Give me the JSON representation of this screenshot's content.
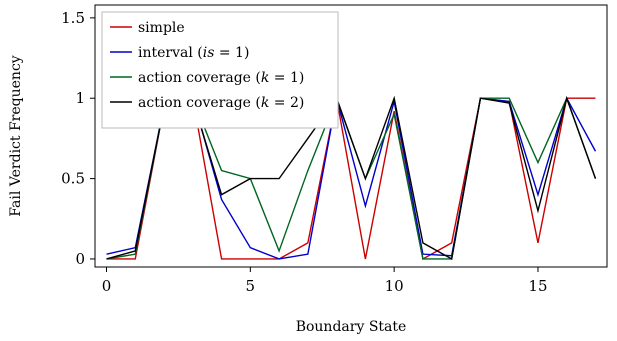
{
  "chart_data": {
    "type": "line",
    "xlabel": "Boundary State",
    "ylabel": "Fail Verdict Frequency",
    "xlim": [
      -0.4,
      17.4
    ],
    "ylim": [
      -0.05,
      1.58
    ],
    "xticks": [
      0,
      5,
      10,
      15
    ],
    "xtick_labels": [
      "0",
      "5",
      "10",
      "15"
    ],
    "yticks": [
      0,
      0.5,
      1,
      1.5
    ],
    "ytick_labels": [
      "0",
      "0.5",
      "1",
      "1.5"
    ],
    "grid": false,
    "legend_position": "top-left",
    "x": [
      0,
      1,
      2,
      3,
      4,
      5,
      6,
      7,
      8,
      9,
      10,
      11,
      12,
      13,
      14,
      15,
      16,
      17
    ],
    "series": [
      {
        "name_parts": [
          "simple"
        ],
        "color": "#cc0000",
        "values": [
          0,
          0,
          0.95,
          1.0,
          0,
          0,
          0,
          0.1,
          1.0,
          0,
          0.92,
          0,
          0.1,
          1.0,
          0.98,
          0.1,
          1.0,
          1.0
        ]
      },
      {
        "name_parts": [
          "interval (",
          "is",
          " = 1)"
        ],
        "color": "#0000cc",
        "values": [
          0.03,
          0.07,
          0.95,
          1.0,
          0.37,
          0.07,
          0,
          0.03,
          1.0,
          0.33,
          0.98,
          0.03,
          0.02,
          1.0,
          0.98,
          0.4,
          1.0,
          0.67
        ]
      },
      {
        "name_parts": [
          "action coverage (",
          "k",
          " = 1)"
        ],
        "color": "#006622",
        "values": [
          0,
          0.03,
          0.95,
          1.0,
          0.55,
          0.5,
          0.05,
          0.55,
          1.0,
          0.5,
          0.9,
          0,
          0,
          1.0,
          1.0,
          0.6,
          1.0,
          0.5
        ]
      },
      {
        "name_parts": [
          "action coverage (",
          "k",
          " = 2)"
        ],
        "color": "#000000",
        "values": [
          0,
          0.05,
          0.95,
          0.99,
          0.4,
          0.5,
          0.5,
          0.75,
          1.0,
          0.5,
          1.0,
          0.1,
          0,
          1.0,
          0.97,
          0.3,
          1.0,
          0.5
        ]
      }
    ]
  }
}
